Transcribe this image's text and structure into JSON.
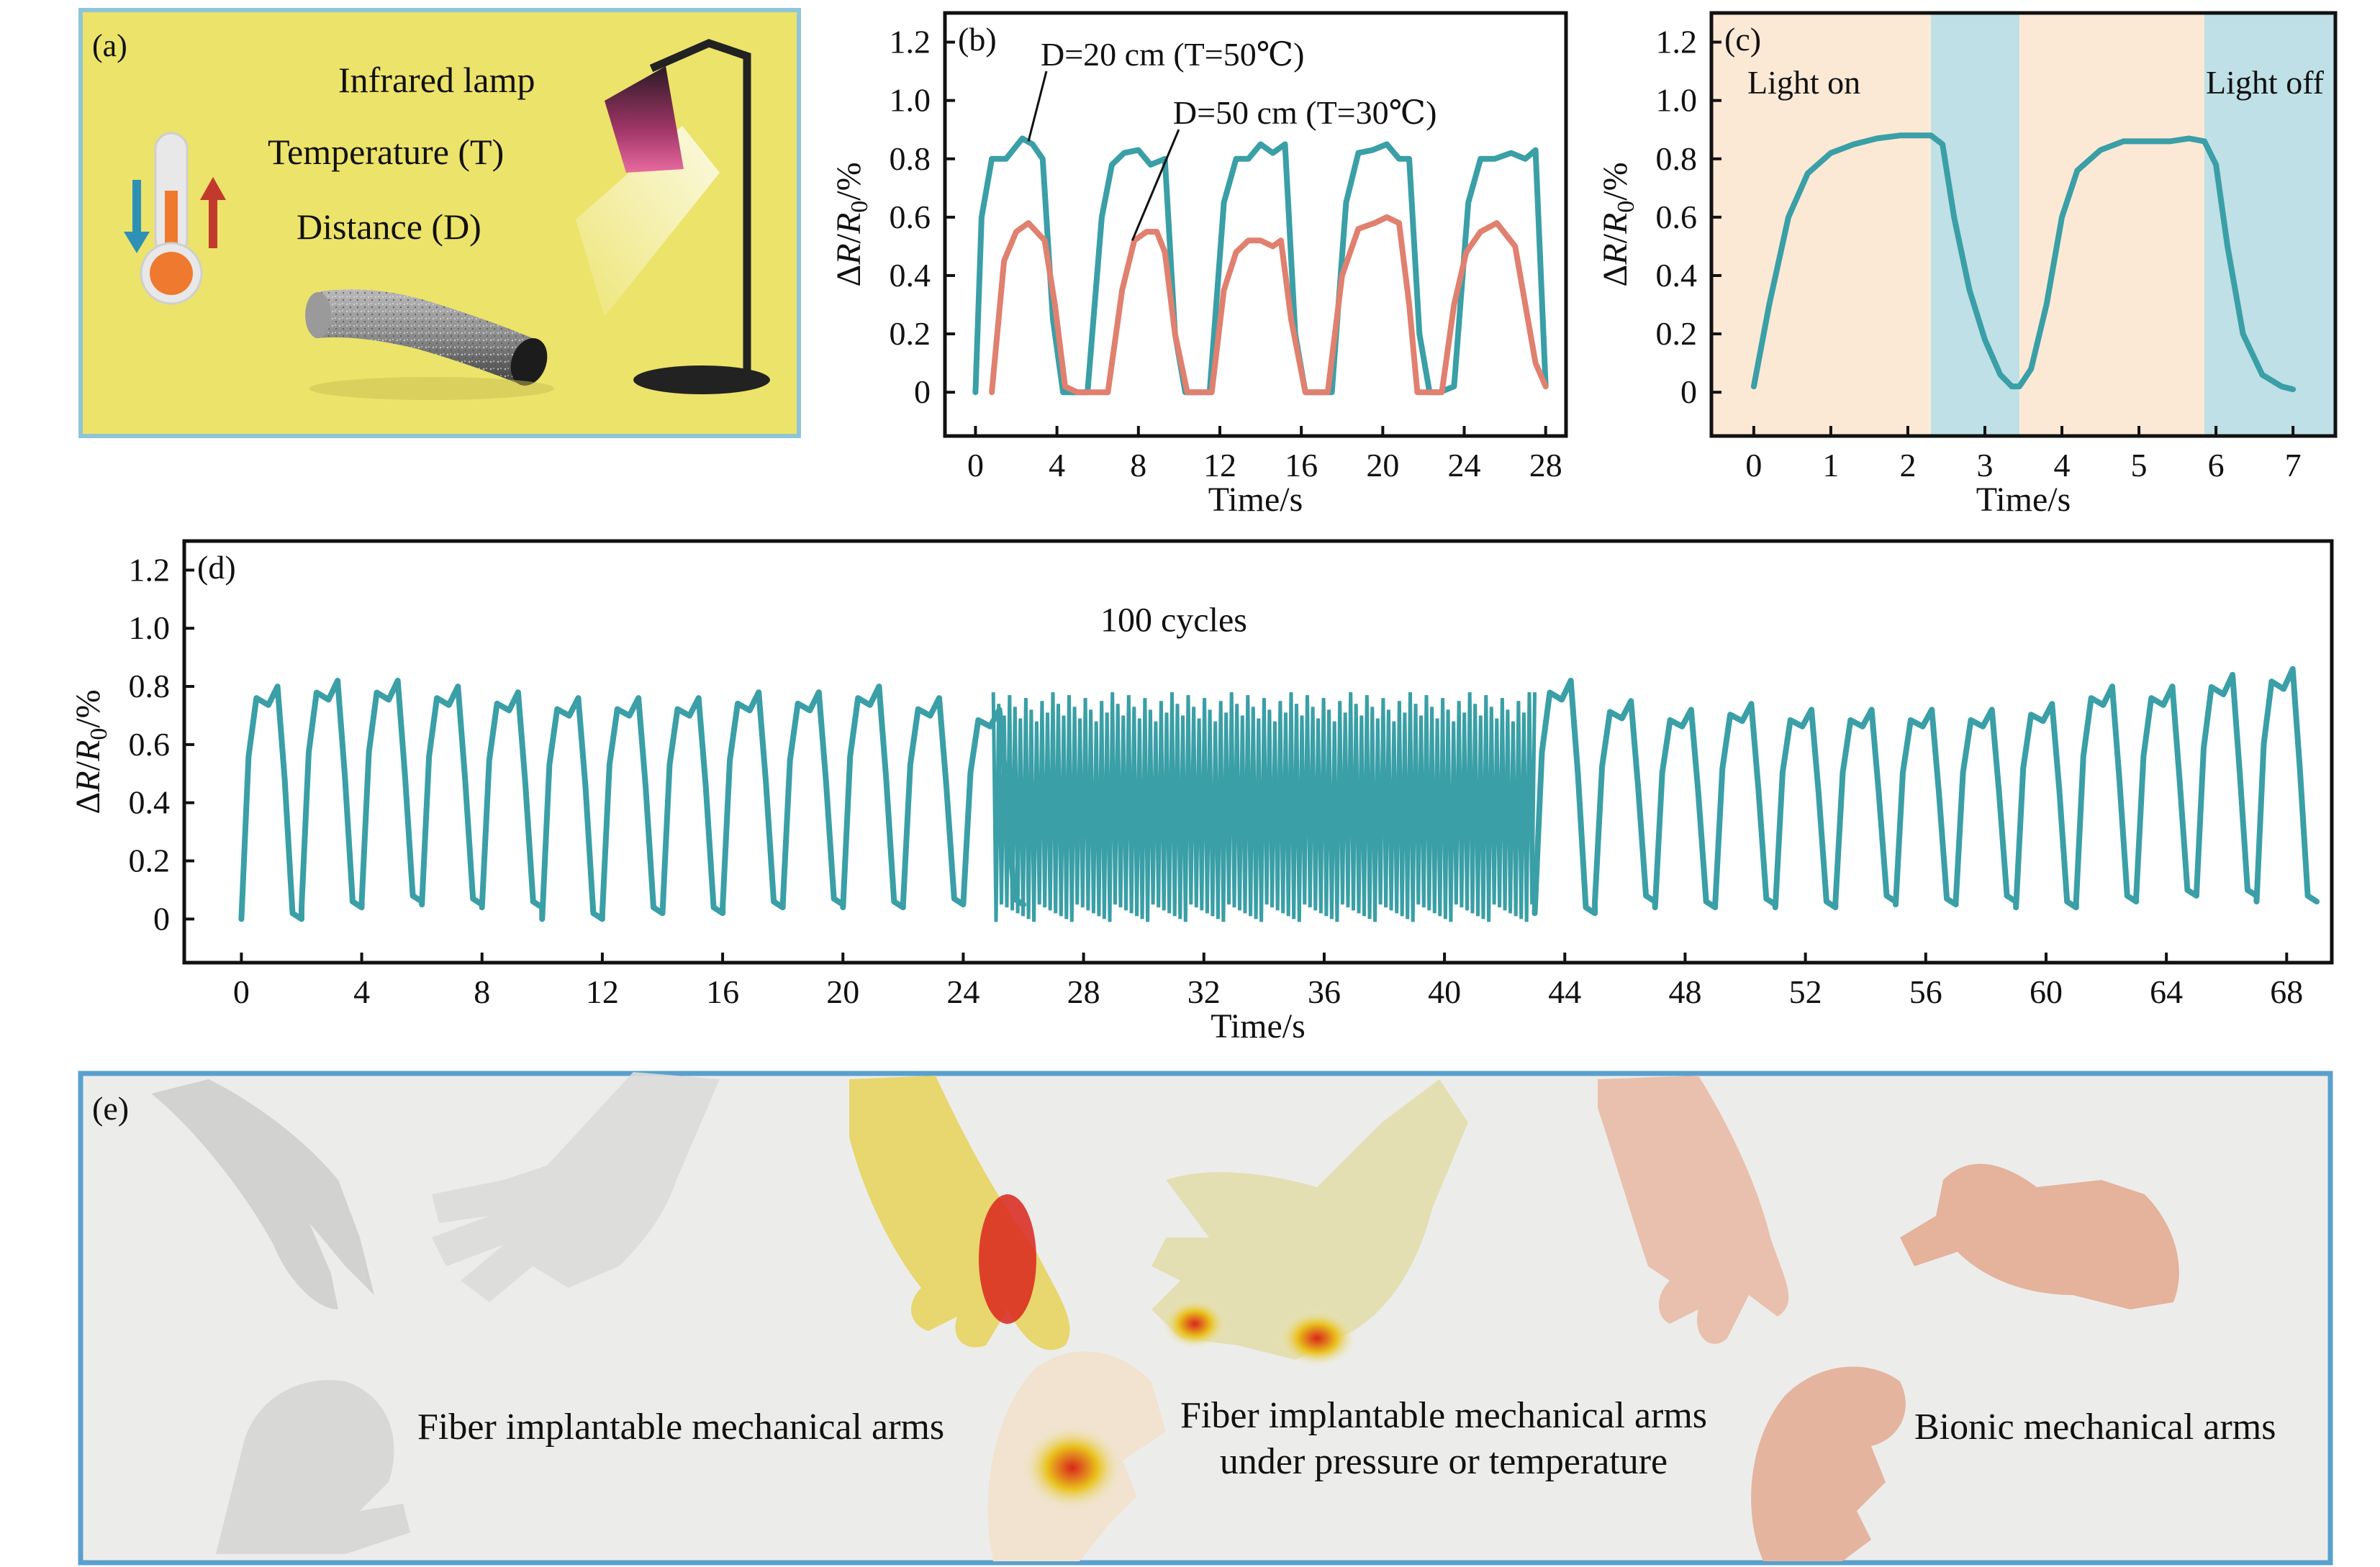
{
  "colors": {
    "teal": "#3a9fa6",
    "red": "#e0806f",
    "light_on_bg": "#fbe9d6",
    "light_off_bg": "#bfe0e6",
    "panel_a_bg": "#ece36a",
    "panel_a_border": "#8fc5d8",
    "panel_e_border": "#5aa0cf"
  },
  "panel_a": {
    "tag": "(a)",
    "lamp_label": "Infrared lamp",
    "temp_label": "Temperature (T)",
    "dist_label": "Distance (D)"
  },
  "panel_e": {
    "tag": "(e)",
    "caption_left": "Fiber implantable mechanical arms",
    "caption_mid_1": "Fiber implantable mechanical arms",
    "caption_mid_2": "under pressure or temperature",
    "caption_right": "Bionic mechanical arms"
  },
  "chart_data": [
    {
      "id": "b",
      "tag": "(b)",
      "type": "line",
      "xlabel": "Time/s",
      "ylabel": "ΔR/R0/%",
      "xlim": [
        -1.5,
        29
      ],
      "ylim": [
        -0.15,
        1.3
      ],
      "xticks": [
        0,
        4,
        8,
        12,
        16,
        20,
        24,
        28
      ],
      "yticks": [
        0,
        0.2,
        0.4,
        0.6,
        0.8,
        1.0,
        1.2
      ],
      "annotations": [
        {
          "text": "D=20 cm (T=50℃)",
          "x": 3.2,
          "y": 1.12,
          "to_x": 2.6,
          "to_y": 0.86
        },
        {
          "text": "D=50 cm (T=30℃)",
          "x": 9.7,
          "y": 0.92,
          "to_x": 7.7,
          "to_y": 0.52
        }
      ],
      "series": [
        {
          "color": "teal",
          "x": [
            0,
            0.3,
            0.8,
            1.5,
            2.3,
            2.8,
            3.3,
            3.8,
            4.3,
            4.8,
            5.5,
            6.2,
            6.7,
            7.3,
            8.0,
            8.6,
            9.3,
            9.8,
            10.3,
            10.8,
            11.5,
            12.2,
            12.8,
            13.4,
            14.0,
            14.6,
            15.2,
            15.7,
            16.2,
            16.8,
            17.5,
            18.2,
            18.8,
            19.5,
            20.2,
            20.8,
            21.3,
            21.8,
            22.3,
            22.8,
            23.5,
            24.2,
            24.8,
            25.5,
            26.3,
            27.0,
            27.5,
            28.0
          ],
          "y": [
            0,
            0.6,
            0.8,
            0.8,
            0.87,
            0.85,
            0.8,
            0.25,
            0,
            0,
            0,
            0.6,
            0.78,
            0.82,
            0.83,
            0.78,
            0.8,
            0.2,
            0,
            0,
            0,
            0.65,
            0.8,
            0.8,
            0.85,
            0.82,
            0.85,
            0.2,
            0,
            0,
            0,
            0.65,
            0.82,
            0.83,
            0.85,
            0.8,
            0.8,
            0.2,
            0,
            0,
            0.02,
            0.65,
            0.8,
            0.8,
            0.82,
            0.8,
            0.83,
            0.02
          ]
        },
        {
          "color": "red",
          "x": [
            0.8,
            1.4,
            2.0,
            2.6,
            3.0,
            3.4,
            3.9,
            4.4,
            5.0,
            6.5,
            7.2,
            7.8,
            8.4,
            8.9,
            9.3,
            9.8,
            10.4,
            11.0,
            11.6,
            12.2,
            12.8,
            13.4,
            14.0,
            14.6,
            15.0,
            15.5,
            16.2,
            17.3,
            18.0,
            18.8,
            19.6,
            20.2,
            20.8,
            21.3,
            21.7,
            22.3,
            22.9,
            23.5,
            24.1,
            24.8,
            25.6,
            26.5,
            27.0,
            27.5,
            28.0
          ],
          "y": [
            0,
            0.45,
            0.55,
            0.58,
            0.55,
            0.52,
            0.3,
            0.02,
            0,
            0,
            0.35,
            0.52,
            0.55,
            0.55,
            0.48,
            0.2,
            0,
            0,
            0,
            0.35,
            0.48,
            0.52,
            0.52,
            0.5,
            0.52,
            0.25,
            0,
            0,
            0.4,
            0.56,
            0.58,
            0.6,
            0.58,
            0.3,
            0,
            0,
            0,
            0.3,
            0.48,
            0.55,
            0.58,
            0.5,
            0.3,
            0.1,
            0.02
          ]
        }
      ]
    },
    {
      "id": "c",
      "tag": "(c)",
      "type": "line",
      "xlabel": "Time/s",
      "ylabel": "ΔR/R0/%",
      "xlim": [
        -0.55,
        7.55
      ],
      "ylim": [
        -0.15,
        1.3
      ],
      "xticks": [
        0,
        1,
        2,
        3,
        4,
        5,
        6,
        7
      ],
      "yticks": [
        0,
        0.2,
        0.4,
        0.6,
        0.8,
        1.0,
        1.2
      ],
      "regions": [
        {
          "from": -0.55,
          "to": 2.3,
          "state": "on"
        },
        {
          "from": 2.3,
          "to": 3.45,
          "state": "off"
        },
        {
          "from": 3.45,
          "to": 5.85,
          "state": "on"
        },
        {
          "from": 5.85,
          "to": 7.55,
          "state": "off"
        }
      ],
      "region_labels": {
        "on": "Light on",
        "off": "Light off"
      },
      "series": [
        {
          "color": "teal",
          "x": [
            0,
            0.2,
            0.45,
            0.7,
            1.0,
            1.3,
            1.6,
            1.9,
            2.1,
            2.3,
            2.45,
            2.6,
            2.8,
            3.0,
            3.2,
            3.35,
            3.45,
            3.6,
            3.8,
            4.0,
            4.2,
            4.5,
            4.8,
            5.1,
            5.4,
            5.65,
            5.85,
            6.0,
            6.15,
            6.35,
            6.6,
            6.85,
            7.0
          ],
          "y": [
            0.02,
            0.3,
            0.6,
            0.75,
            0.82,
            0.85,
            0.87,
            0.88,
            0.88,
            0.88,
            0.85,
            0.6,
            0.35,
            0.18,
            0.06,
            0.02,
            0.02,
            0.08,
            0.3,
            0.6,
            0.76,
            0.83,
            0.86,
            0.86,
            0.86,
            0.87,
            0.86,
            0.78,
            0.5,
            0.2,
            0.06,
            0.02,
            0.01
          ]
        }
      ]
    },
    {
      "id": "d",
      "tag": "(d)",
      "type": "line",
      "title": "100 cycles",
      "xlabel": "Time/s",
      "ylabel": "ΔR/R0/%",
      "xlim": [
        -1.9,
        69.5
      ],
      "ylim": [
        -0.15,
        1.3
      ],
      "xticks": [
        0,
        4,
        8,
        12,
        16,
        20,
        24,
        28,
        32,
        36,
        40,
        44,
        48,
        52,
        56,
        60,
        64,
        68
      ],
      "yticks": [
        0,
        0.2,
        0.4,
        0.6,
        0.8,
        1.0,
        1.2
      ],
      "series": [
        {
          "color": "teal",
          "slow_cycles": {
            "period": 2.0,
            "starts": [
              0,
              2,
              4,
              6,
              8,
              10,
              12,
              14,
              16,
              18,
              20,
              22,
              24
            ],
            "peaks": [
              0.8,
              0.82,
              0.82,
              0.8,
              0.78,
              0.76,
              0.76,
              0.76,
              0.78,
              0.78,
              0.8,
              0.76,
              0.72
            ],
            "troughs": [
              0,
              0.04,
              0.06,
              0.05,
              0.04,
              0,
              0.02,
              0.02,
              0.04,
              0.05,
              0.04,
              0.05,
              0.05
            ],
            "starts_2": [
              43,
              45,
              47,
              49,
              51,
              53,
              55,
              57,
              59,
              61,
              63,
              65,
              67
            ],
            "peaks_2": [
              0.82,
              0.75,
              0.72,
              0.74,
              0.72,
              0.72,
              0.72,
              0.72,
              0.74,
              0.8,
              0.8,
              0.84,
              0.86
            ],
            "troughs_2": [
              0.02,
              0.06,
              0.04,
              0.05,
              0.04,
              0.06,
              0.05,
              0.06,
              0.04,
              0.06,
              0.08,
              0.08,
              0.06
            ]
          },
          "dense_block": {
            "from": 25.0,
            "to": 43.0,
            "cycles": 100,
            "high": 0.78,
            "low": -0.01
          }
        }
      ]
    }
  ]
}
